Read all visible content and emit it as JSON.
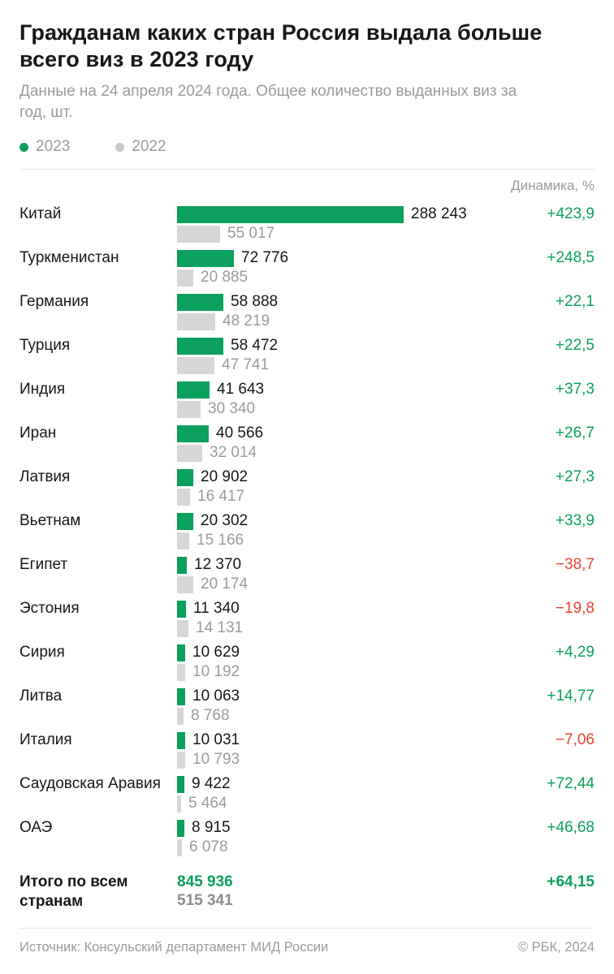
{
  "header": {
    "title": "Гражданам каких стран Россия выдала больше всего виз в 2023 году",
    "subtitle": "Данные на 24 апреля 2024 года. Общее количество выданных виз за год, шт.",
    "legend": [
      {
        "label": "2023",
        "color": "#0ca05e"
      },
      {
        "label": "2022",
        "color": "#c7c7c7"
      }
    ],
    "dynamics_header": "Динамика, %"
  },
  "chart_data": {
    "type": "bar",
    "orientation": "horizontal",
    "title": "Гражданам каких стран Россия выдала больше всего виз в 2023 году",
    "series_names": [
      "2023",
      "2022"
    ],
    "value_unit": "шт.",
    "max_value": 288243,
    "value_axis_range": [
      0,
      288243
    ],
    "grid": false,
    "legend_position": "top",
    "rows": [
      {
        "country": "Китай",
        "v2023": 288243,
        "v2022": 55017,
        "v2023_label": "288 243",
        "v2022_label": "55 017",
        "dynamics_pct": 423.9,
        "dynamics_label": "+423,9"
      },
      {
        "country": "Туркменистан",
        "v2023": 72776,
        "v2022": 20885,
        "v2023_label": "72 776",
        "v2022_label": "20 885",
        "dynamics_pct": 248.5,
        "dynamics_label": "+248,5"
      },
      {
        "country": "Германия",
        "v2023": 58888,
        "v2022": 48219,
        "v2023_label": "58 888",
        "v2022_label": "48 219",
        "dynamics_pct": 22.1,
        "dynamics_label": "+22,1"
      },
      {
        "country": "Турция",
        "v2023": 58472,
        "v2022": 47741,
        "v2023_label": "58 472",
        "v2022_label": "47 741",
        "dynamics_pct": 22.5,
        "dynamics_label": "+22,5"
      },
      {
        "country": "Индия",
        "v2023": 41643,
        "v2022": 30340,
        "v2023_label": "41 643",
        "v2022_label": "30 340",
        "dynamics_pct": 37.3,
        "dynamics_label": "+37,3"
      },
      {
        "country": "Иран",
        "v2023": 40566,
        "v2022": 32014,
        "v2023_label": "40 566",
        "v2022_label": "32 014",
        "dynamics_pct": 26.7,
        "dynamics_label": "+26,7"
      },
      {
        "country": "Латвия",
        "v2023": 20902,
        "v2022": 16417,
        "v2023_label": "20 902",
        "v2022_label": "16 417",
        "dynamics_pct": 27.3,
        "dynamics_label": "+27,3"
      },
      {
        "country": "Вьетнам",
        "v2023": 20302,
        "v2022": 15166,
        "v2023_label": "20 302",
        "v2022_label": "15 166",
        "dynamics_pct": 33.9,
        "dynamics_label": "+33,9"
      },
      {
        "country": "Египет",
        "v2023": 12370,
        "v2022": 20174,
        "v2023_label": "12 370",
        "v2022_label": "20 174",
        "dynamics_pct": -38.7,
        "dynamics_label": "−38,7"
      },
      {
        "country": "Эстония",
        "v2023": 11340,
        "v2022": 14131,
        "v2023_label": "11 340",
        "v2022_label": "14 131",
        "dynamics_pct": -19.8,
        "dynamics_label": "−19,8"
      },
      {
        "country": "Сирия",
        "v2023": 10629,
        "v2022": 10192,
        "v2023_label": "10 629",
        "v2022_label": "10 192",
        "dynamics_pct": 4.29,
        "dynamics_label": "+4,29"
      },
      {
        "country": "Литва",
        "v2023": 10063,
        "v2022": 8768,
        "v2023_label": "10 063",
        "v2022_label": "8 768",
        "dynamics_pct": 14.77,
        "dynamics_label": "+14,77"
      },
      {
        "country": "Италия",
        "v2023": 10031,
        "v2022": 10793,
        "v2023_label": "10 031",
        "v2022_label": "10 793",
        "dynamics_pct": -7.06,
        "dynamics_label": "−7,06"
      },
      {
        "country": "Саудовская Аравия",
        "v2023": 9422,
        "v2022": 5464,
        "v2023_label": "9 422",
        "v2022_label": "5 464",
        "dynamics_pct": 72.44,
        "dynamics_label": "+72,44"
      },
      {
        "country": "ОАЭ",
        "v2023": 8915,
        "v2022": 6078,
        "v2023_label": "8 915",
        "v2022_label": "6 078",
        "dynamics_pct": 46.68,
        "dynamics_label": "+46,68"
      }
    ],
    "total": {
      "label": "Итого по всем странам",
      "v2023": 845936,
      "v2022": 515341,
      "v2023_label": "845 936",
      "v2022_label": "515 341",
      "dynamics_pct": 64.15,
      "dynamics_label": "+64,15"
    }
  },
  "footer": {
    "source": "Источник: Консульский департамент МИД России",
    "copyright": "© РБК, 2024"
  },
  "colors": {
    "green": "#0ca05e",
    "red": "#e8442d",
    "bar_2022": "#d6d6d6",
    "text_gray": "#9b9b9b"
  }
}
